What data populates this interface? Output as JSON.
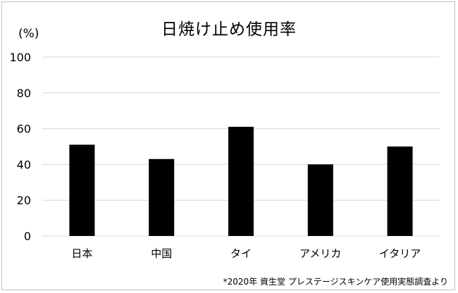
{
  "chart_data": {
    "type": "bar",
    "title": "日焼け止め使用率",
    "ylabel": "(%)",
    "xlabel": "",
    "categories": [
      "日本",
      "中国",
      "タイ",
      "アメリカ",
      "イタリア"
    ],
    "values": [
      51,
      43,
      61,
      40,
      50
    ],
    "ylim": [
      0,
      100
    ],
    "yticks": [
      0,
      20,
      40,
      60,
      80,
      100
    ],
    "grid": true,
    "bar_color": "#000000",
    "grid_color": "#d9d9d9"
  },
  "source": "*2020年 資生堂 プレステージスキンケア使用実態調査より"
}
